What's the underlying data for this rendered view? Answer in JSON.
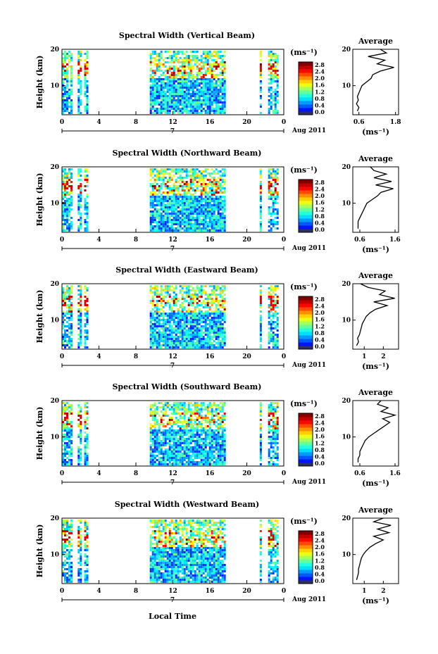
{
  "figure": {
    "xlabel": "Local Time",
    "date_label": "Aug 2011",
    "date_marker": "7",
    "colorbar_unit": "(ms⁻¹)",
    "average_title": "Average",
    "average_xlabel": "(ms⁻¹)"
  },
  "chart_data": [
    {
      "type": "heatmap",
      "title": "Spectral Width (Vertical Beam)",
      "ylabel": "Height (km)",
      "x_ticks": [
        "0",
        "4",
        "8",
        "12",
        "16",
        "20",
        "0"
      ],
      "xlim": [
        0,
        24
      ],
      "y_ticks": [
        "20",
        "10"
      ],
      "ylim": [
        2,
        20
      ],
      "data_x_ranges": [
        [
          0,
          1.1
        ],
        [
          1.7,
          2.0
        ],
        [
          2.4,
          2.7
        ],
        [
          9.5,
          17.6
        ],
        [
          21.4,
          21.6
        ],
        [
          22.3,
          23.3
        ]
      ],
      "colorbar": {
        "ticks": [
          "2.8",
          "2.4",
          "2.0",
          "1.6",
          "1.2",
          "0.8",
          "0.4",
          "0.0"
        ],
        "range": [
          0,
          2.8
        ]
      },
      "average": {
        "x_ticks": [
          "0.6",
          "1.8"
        ],
        "xlim": [
          0.4,
          1.9
        ],
        "y_ticks": [
          "20",
          "10"
        ],
        "heights": [
          3,
          4,
          5,
          6,
          7,
          8,
          9,
          10,
          11,
          12,
          13,
          14,
          15,
          16,
          17,
          18,
          19,
          20
        ],
        "values": [
          0.55,
          0.6,
          0.52,
          0.58,
          0.55,
          0.6,
          0.65,
          0.7,
          0.85,
          1.0,
          1.05,
          1.3,
          1.75,
          1.2,
          1.45,
          0.9,
          1.5,
          1.3
        ]
      }
    },
    {
      "type": "heatmap",
      "title": "Spectral Width (Northward Beam)",
      "ylabel": "Height (km)",
      "x_ticks": [
        "0",
        "4",
        "8",
        "12",
        "16",
        "20",
        "0"
      ],
      "xlim": [
        0,
        24
      ],
      "y_ticks": [
        "20",
        "10"
      ],
      "ylim": [
        2,
        20
      ],
      "data_x_ranges": [
        [
          0,
          1.1
        ],
        [
          1.7,
          2.0
        ],
        [
          2.4,
          2.7
        ],
        [
          9.5,
          17.6
        ],
        [
          21.4,
          21.6
        ],
        [
          22.3,
          23.3
        ]
      ],
      "colorbar": {
        "ticks": [
          "2.8",
          "2.4",
          "2.0",
          "1.6",
          "1.2",
          "0.8",
          "0.4",
          "0.0"
        ],
        "range": [
          0,
          2.8
        ]
      },
      "average": {
        "x_ticks": [
          "0.6",
          "1.6"
        ],
        "xlim": [
          0.4,
          1.7
        ],
        "y_ticks": [
          "20",
          "10"
        ],
        "heights": [
          3,
          4,
          5,
          6,
          7,
          8,
          9,
          10,
          11,
          12,
          13,
          14,
          15,
          16,
          17,
          18,
          19,
          20
        ],
        "values": [
          0.55,
          0.55,
          0.55,
          0.6,
          0.65,
          0.7,
          0.75,
          0.8,
          0.95,
          1.1,
          1.2,
          1.55,
          1.05,
          1.5,
          1.0,
          1.35,
          1.0,
          0.9
        ]
      }
    },
    {
      "type": "heatmap",
      "title": "Spectral Width (Eastward Beam)",
      "ylabel": "Height (km)",
      "x_ticks": [
        "0",
        "4",
        "8",
        "12",
        "16",
        "20",
        "0"
      ],
      "xlim": [
        0,
        24
      ],
      "y_ticks": [
        "20",
        "10"
      ],
      "ylim": [
        2,
        20
      ],
      "data_x_ranges": [
        [
          0,
          1.1
        ],
        [
          1.7,
          2.0
        ],
        [
          2.4,
          2.7
        ],
        [
          9.5,
          17.6
        ],
        [
          21.4,
          21.6
        ],
        [
          22.3,
          23.3
        ]
      ],
      "colorbar": {
        "ticks": [
          "2.8",
          "2.4",
          "2.0",
          "1.6",
          "1.2",
          "0.8",
          "0.4",
          "0.0"
        ],
        "range": [
          0,
          2.8
        ]
      },
      "average": {
        "x_ticks": [
          "1",
          "2"
        ],
        "xlim": [
          0.4,
          2.8
        ],
        "y_ticks": [
          "20",
          "10"
        ],
        "heights": [
          3,
          4,
          5,
          6,
          7,
          8,
          9,
          10,
          11,
          12,
          13,
          14,
          15,
          16,
          17,
          18,
          19,
          20
        ],
        "values": [
          0.6,
          0.7,
          0.65,
          0.75,
          0.8,
          0.85,
          0.9,
          1.0,
          1.1,
          1.3,
          1.6,
          2.2,
          1.5,
          2.6,
          1.8,
          2.1,
          1.2,
          0.8
        ]
      }
    },
    {
      "type": "heatmap",
      "title": "Spectral Width (Southward Beam)",
      "ylabel": "Height (km)",
      "x_ticks": [
        "0",
        "4",
        "8",
        "12",
        "16",
        "20",
        "0"
      ],
      "xlim": [
        0,
        24
      ],
      "y_ticks": [
        "20",
        "10"
      ],
      "ylim": [
        2,
        20
      ],
      "data_x_ranges": [
        [
          0,
          1.1
        ],
        [
          1.7,
          2.0
        ],
        [
          2.4,
          2.7
        ],
        [
          9.5,
          17.6
        ],
        [
          21.4,
          21.6
        ],
        [
          22.3,
          23.3
        ]
      ],
      "colorbar": {
        "ticks": [
          "2.8",
          "2.4",
          "2.0",
          "1.6",
          "1.2",
          "0.8",
          "0.4",
          "0.0"
        ],
        "range": [
          0,
          2.8
        ]
      },
      "average": {
        "x_ticks": [
          "0.6",
          "1.6"
        ],
        "xlim": [
          0.4,
          1.7
        ],
        "y_ticks": [
          "20",
          "10"
        ],
        "heights": [
          3,
          4,
          5,
          6,
          7,
          8,
          9,
          10,
          11,
          12,
          13,
          14,
          15,
          16,
          17,
          18,
          19,
          20
        ],
        "values": [
          0.55,
          0.55,
          0.6,
          0.6,
          0.65,
          0.7,
          0.75,
          0.85,
          1.0,
          1.15,
          1.3,
          1.45,
          1.25,
          1.6,
          1.2,
          1.4,
          1.1,
          1.2
        ]
      }
    },
    {
      "type": "heatmap",
      "title": "Spectral Width (Westward Beam)",
      "ylabel": "Height (km)",
      "x_ticks": [
        "0",
        "4",
        "8",
        "12",
        "16",
        "20",
        "0"
      ],
      "xlim": [
        0,
        24
      ],
      "y_ticks": [
        "20",
        "10"
      ],
      "ylim": [
        2,
        20
      ],
      "data_x_ranges": [
        [
          0,
          1.1
        ],
        [
          1.7,
          2.0
        ],
        [
          2.4,
          2.7
        ],
        [
          9.5,
          17.6
        ],
        [
          21.4,
          21.6
        ],
        [
          22.3,
          23.3
        ]
      ],
      "colorbar": {
        "ticks": [
          "2.8",
          "2.4",
          "2.0",
          "1.6",
          "1.2",
          "0.8",
          "0.4",
          "0.0"
        ],
        "range": [
          0,
          2.8
        ]
      },
      "average": {
        "x_ticks": [
          "1",
          "2"
        ],
        "xlim": [
          0.4,
          2.8
        ],
        "y_ticks": [
          "20",
          "10"
        ],
        "heights": [
          3,
          4,
          5,
          6,
          7,
          8,
          9,
          10,
          11,
          12,
          13,
          14,
          15,
          16,
          17,
          18,
          19,
          20
        ],
        "values": [
          0.6,
          0.65,
          0.7,
          0.7,
          0.75,
          0.8,
          0.85,
          0.95,
          1.1,
          1.3,
          1.6,
          2.0,
          1.5,
          2.3,
          1.7,
          2.4,
          1.5,
          2.0
        ]
      }
    }
  ]
}
